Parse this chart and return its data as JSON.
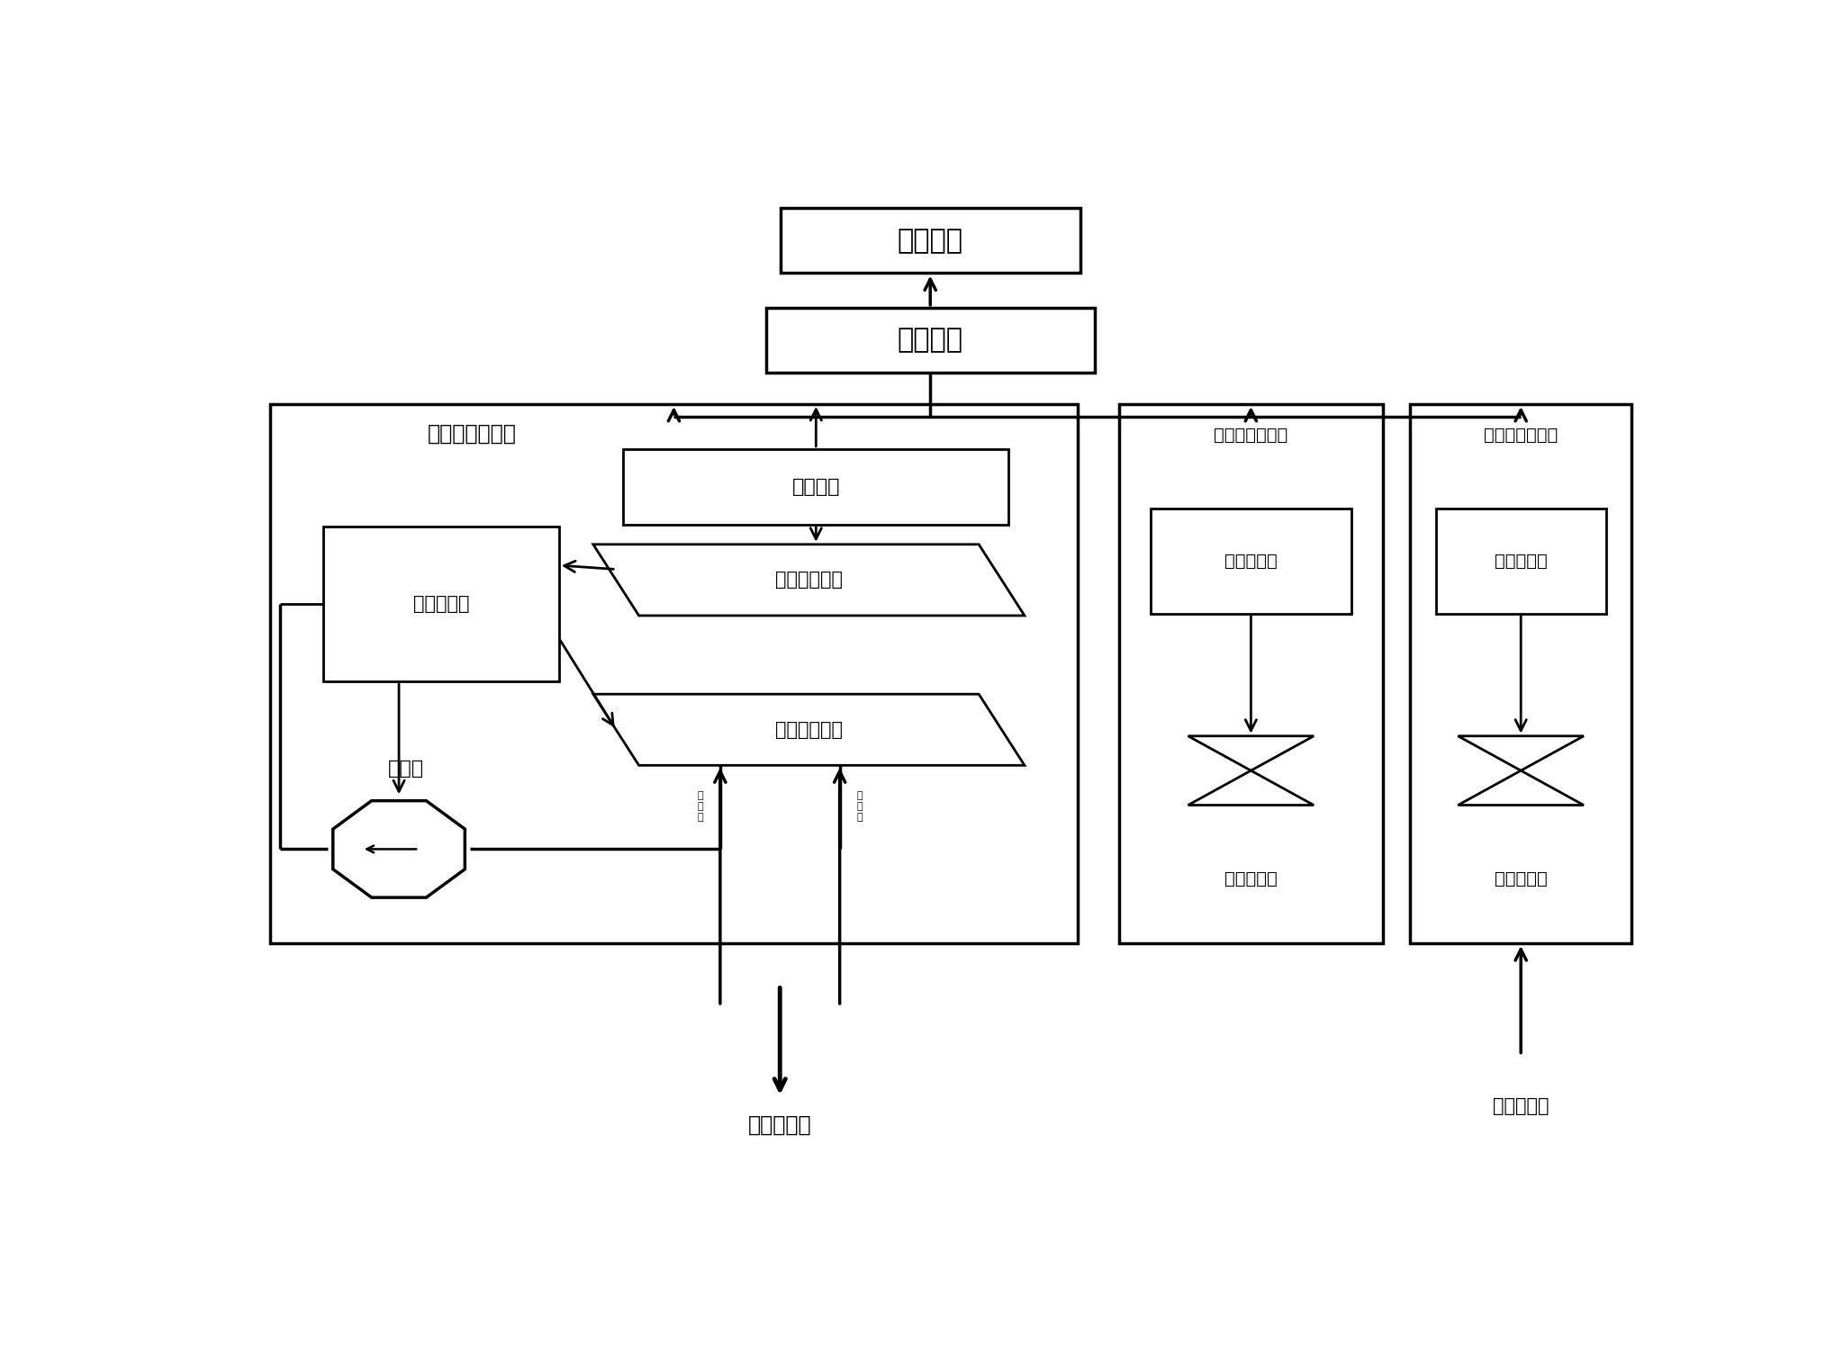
{
  "bg_color": "#ffffff",
  "lc": "#000000",
  "tc": "#000000",
  "label_display": "显示模块",
  "label_main": "主控模块",
  "label_oil_sys": "油耗检测子系统",
  "label_temp_sys": "温度检测子系统",
  "label_mile_sys": "里程检测子系统",
  "label_aux_tank": "辅助油笩",
  "label_upper_sensor": "上液位传感器",
  "label_lower_sensor": "下液位传感器",
  "label_sub_ctrl": "子控制模块",
  "label_pump": "定量泵",
  "label_engine": "汽车发动机",
  "label_gearbox": "汽车变速笩",
  "label_temp_sensor": "温度传感器",
  "label_rotation_sensor": "旋转传感器",
  "label_port1": "口进回",
  "label_port2": "口出去"
}
